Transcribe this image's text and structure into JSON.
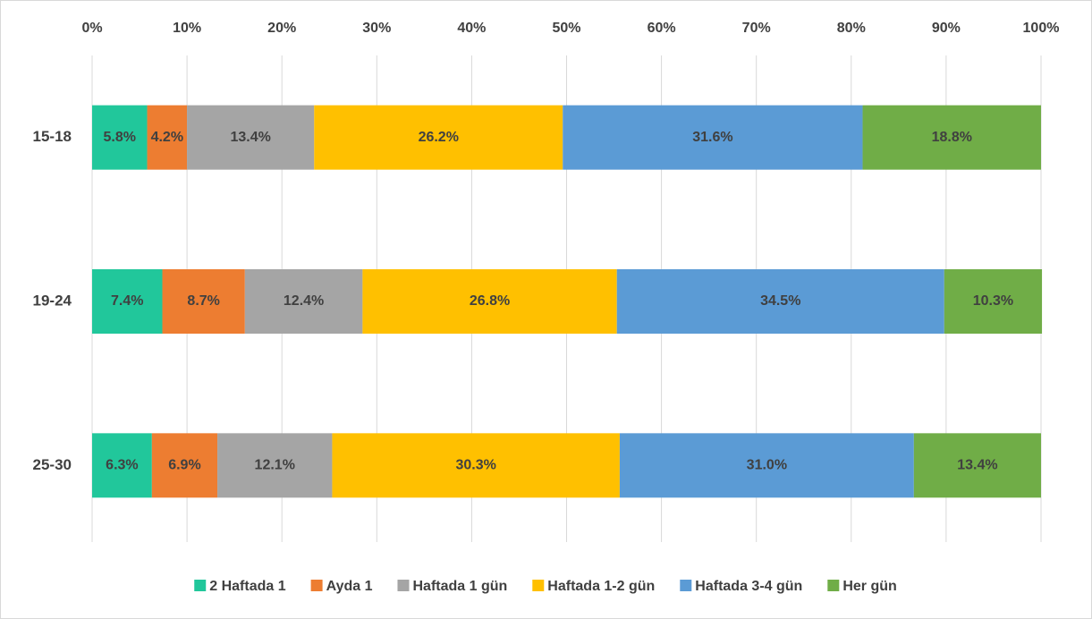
{
  "chart_data": {
    "type": "stacked_barh",
    "categories": [
      "15-18",
      "19-24",
      "25-30"
    ],
    "series": [
      {
        "name": "2 Haftada 1",
        "color": "#21C79B",
        "values": [
          5.8,
          7.4,
          6.3
        ],
        "value_labels": [
          "5.8%",
          "7.4%",
          "6.3%"
        ]
      },
      {
        "name": "Ayda 1",
        "color": "#ED7D31",
        "values": [
          4.2,
          8.7,
          6.9
        ],
        "value_labels": [
          "4.2%",
          "8.7%",
          "6.9%"
        ]
      },
      {
        "name": "Haftada 1 gün",
        "color": "#A5A5A5",
        "values": [
          13.4,
          12.4,
          12.1
        ],
        "value_labels": [
          "13.4%",
          "12.4%",
          "12.1%"
        ]
      },
      {
        "name": "Haftada 1-2 gün",
        "color": "#FFC000",
        "values": [
          26.2,
          26.8,
          30.3
        ],
        "value_labels": [
          "26.2%",
          "26.8%",
          "30.3%"
        ]
      },
      {
        "name": "Haftada 3-4 gün",
        "color": "#5B9BD5",
        "values": [
          31.6,
          34.5,
          31.0
        ],
        "value_labels": [
          "31.6%",
          "34.5%",
          "31.0%"
        ]
      },
      {
        "name": "Her gün",
        "color": "#70AD47",
        "values": [
          18.8,
          10.3,
          13.4
        ],
        "value_labels": [
          "18.8%",
          "10.3%",
          "13.4%"
        ]
      }
    ],
    "xlim": [
      0,
      100
    ],
    "xticks": [
      {
        "value": 0,
        "label": "0%"
      },
      {
        "value": 10,
        "label": "10%"
      },
      {
        "value": 20,
        "label": "20%"
      },
      {
        "value": 30,
        "label": "30%"
      },
      {
        "value": 40,
        "label": "40%"
      },
      {
        "value": 50,
        "label": "50%"
      },
      {
        "value": 60,
        "label": "60%"
      },
      {
        "value": 70,
        "label": "70%"
      },
      {
        "value": 80,
        "label": "80%"
      },
      {
        "value": 90,
        "label": "90%"
      },
      {
        "value": 100,
        "label": "100%"
      }
    ],
    "grid": true,
    "legend": "bottom"
  }
}
